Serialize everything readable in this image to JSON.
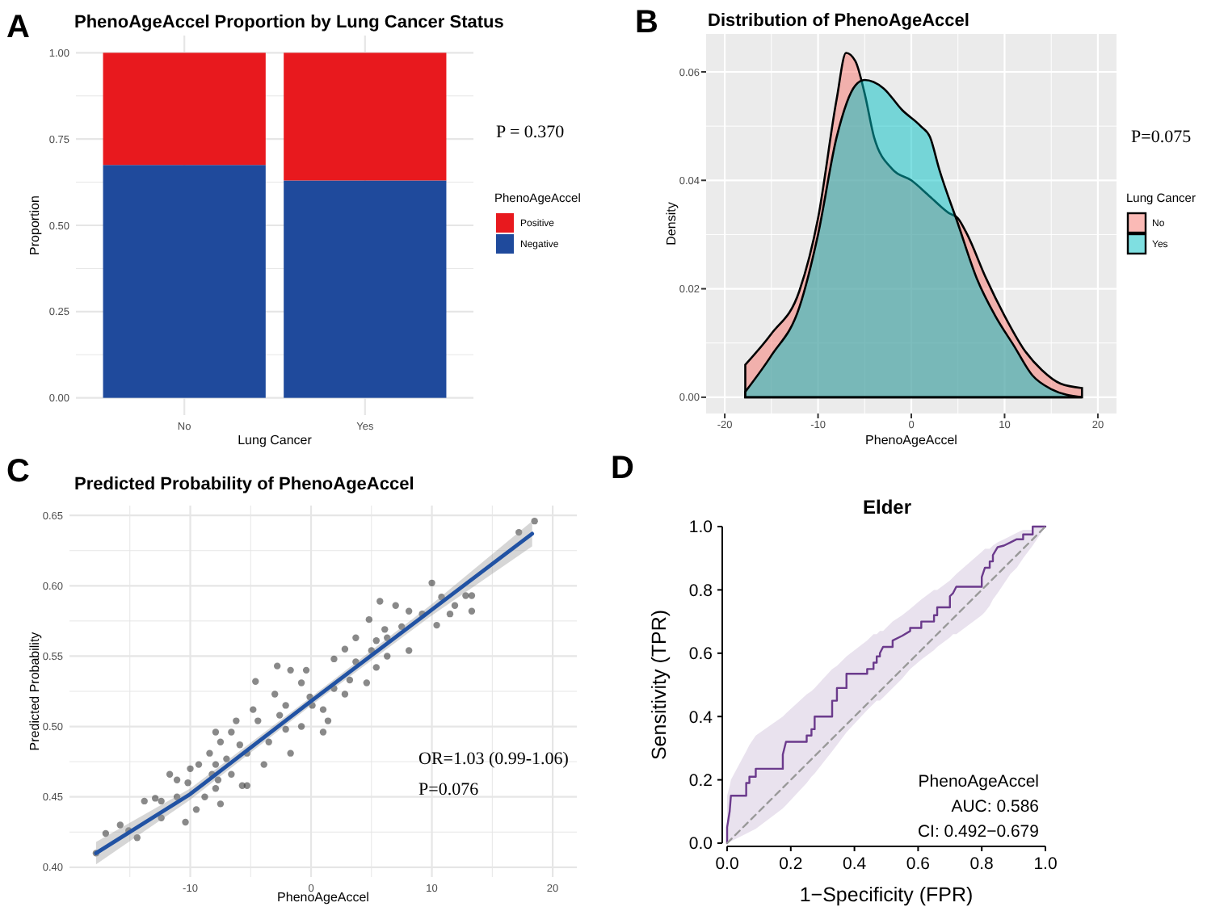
{
  "chart_data": [
    {
      "type": "bar",
      "title": "PhenoAgeAccel Proportion by Lung Cancer Status",
      "xlabel": "Lung Cancer",
      "ylabel": "Proportion",
      "legend_title": "PhenoAgeAccel",
      "annotations": [
        "A",
        "P = 0.370"
      ],
      "categories": [
        "No",
        "Yes"
      ],
      "stacked": true,
      "ylim": [
        -0.05,
        1.05
      ],
      "yticks": [
        {
          "value": 0,
          "label": "0.00"
        },
        {
          "value": 0.25,
          "label": "0.25"
        },
        {
          "value": 0.5,
          "label": "0.50"
        },
        {
          "value": 0.75,
          "label": "0.75"
        },
        {
          "value": 1,
          "label": "1.00"
        }
      ],
      "grid": true,
      "legend": "right",
      "series": [
        {
          "name": "Negative",
          "color": "#1f4a9c",
          "values": [
            0.675,
            0.63
          ]
        },
        {
          "name": "Positive",
          "color": "#e8191e",
          "values": [
            0.325,
            0.37
          ]
        }
      ]
    },
    {
      "type": "area",
      "title": "Distribution of PhenoAgeAccel",
      "xlabel": "PhenoAgeAccel",
      "ylabel": "Density",
      "legend_title": "Lung Cancer",
      "annotations": [
        "B",
        "P=0.075"
      ],
      "xlim": [
        -22,
        22
      ],
      "xticks": [
        -20,
        -10,
        0,
        10,
        20
      ],
      "ylim": [
        -0.003,
        0.067
      ],
      "yticks": [
        {
          "value": 0,
          "label": "0.00"
        },
        {
          "value": 0.02,
          "label": "0.02"
        },
        {
          "value": 0.04,
          "label": "0.04"
        },
        {
          "value": 0.06,
          "label": "0.06"
        }
      ],
      "grid": true,
      "legend": "right",
      "series": [
        {
          "name": "No",
          "color": "#f8766d",
          "x": [
            -17.8,
            -15,
            -12,
            -10,
            -8,
            -7,
            -6,
            -5,
            -4,
            -2,
            0,
            2,
            4,
            5,
            6,
            8,
            10,
            12,
            14,
            16,
            18.3
          ],
          "values": [
            0.006,
            0.0117,
            0.0196,
            0.033,
            0.055,
            0.0635,
            0.062,
            0.056,
            0.048,
            0.042,
            0.04,
            0.037,
            0.034,
            0.033,
            0.03,
            0.022,
            0.015,
            0.009,
            0.005,
            0.0025,
            0.0017
          ]
        },
        {
          "name": "Yes",
          "color": "#00bfc4",
          "x": [
            -17.8,
            -15,
            -12,
            -10,
            -8,
            -6,
            -5,
            -3,
            -1,
            1,
            2,
            3,
            5,
            7,
            9,
            11,
            13,
            15,
            18.3
          ],
          "values": [
            0.001,
            0.0077,
            0.0166,
            0.03,
            0.048,
            0.0575,
            0.0585,
            0.057,
            0.053,
            0.05,
            0.048,
            0.042,
            0.032,
            0.022,
            0.015,
            0.0095,
            0.004,
            0.0015,
            0.0
          ]
        }
      ]
    },
    {
      "type": "scatter",
      "title": "Predicted Probability of PhenoAgeAccel",
      "xlabel": "PhenoAgeAccel",
      "ylabel": "Predicted Probability",
      "annotations": [
        "C",
        "OR=1.03 (0.99-1.06)",
        "P=0.076"
      ],
      "xlim": [
        -20,
        22
      ],
      "xticks": [
        -10,
        0,
        10,
        20
      ],
      "ylim": [
        0.393,
        0.657
      ],
      "yticks": [
        {
          "value": 0.4,
          "label": "0.40"
        },
        {
          "value": 0.45,
          "label": "0.45"
        },
        {
          "value": 0.5,
          "label": "0.50"
        },
        {
          "value": 0.55,
          "label": "0.55"
        },
        {
          "value": 0.6,
          "label": "0.60"
        },
        {
          "value": 0.65,
          "label": "0.65"
        }
      ],
      "grid": true,
      "series": [
        {
          "color": "#3a3a3a",
          "x": [
            18.5,
            17.2,
            10,
            13.3,
            12.8,
            10.8,
            13.3,
            10.4,
            8.1,
            5.7,
            7,
            4.8,
            -2.8,
            -4.6,
            -1.7,
            -0.4,
            1,
            -6.6,
            -7.9,
            -11.7,
            -10.4,
            -13.8,
            -15.8,
            -17,
            -17.8,
            -14.4,
            -12.4,
            -9.5,
            -7.5,
            -5.3,
            -3.9,
            -1.7,
            -0.8,
            1.9,
            3.2,
            5.4,
            6.3,
            3.7,
            1.9,
            2.8,
            -0.1,
            -2.6,
            -4.4,
            -5.9,
            -7,
            -8.2,
            -9.3,
            -10.2,
            -8.8,
            -7.9,
            -11.1,
            -12.9,
            -15.1,
            -5.3,
            -3.5,
            -2.1,
            1,
            1.4,
            2.8,
            4.6,
            5,
            6.1,
            7.5,
            9.2,
            8.1,
            11.5,
            11.9,
            -0.8,
            -3,
            -4.8,
            -6.2,
            -7.5,
            -8.4,
            -10,
            -11.1,
            -12.4,
            -6.6,
            -5.7,
            3.7,
            6.3,
            5.4,
            0.1,
            -2.1,
            -7.9,
            -7.7
          ],
          "values": [
            0.646,
            0.638,
            0.602,
            0.593,
            0.593,
            0.592,
            0.582,
            0.572,
            0.554,
            0.589,
            0.586,
            0.576,
            0.543,
            0.532,
            0.54,
            0.54,
            0.512,
            0.496,
            0.496,
            0.466,
            0.432,
            0.447,
            0.43,
            0.424,
            0.41,
            0.421,
            0.435,
            0.441,
            0.445,
            0.458,
            0.473,
            0.481,
            0.5,
            0.527,
            0.533,
            0.542,
            0.563,
            0.563,
            0.548,
            0.555,
            0.521,
            0.508,
            0.504,
            0.487,
            0.477,
            0.466,
            0.473,
            0.46,
            0.45,
            0.456,
            0.45,
            0.449,
            0.426,
            0.481,
            0.489,
            0.498,
            0.496,
            0.504,
            0.523,
            0.531,
            0.554,
            0.569,
            0.571,
            0.58,
            0.582,
            0.58,
            0.586,
            0.531,
            0.523,
            0.512,
            0.504,
            0.489,
            0.481,
            0.47,
            0.462,
            0.447,
            0.466,
            0.458,
            0.546,
            0.55,
            0.561,
            0.515,
            0.515,
            0.473,
            0.462
          ]
        },
        {
          "type": "line",
          "color": "#2152a3",
          "x": [
            -17.8,
            -10,
            0,
            10,
            18.3
          ],
          "values": [
            0.41,
            0.452,
            0.518,
            0.583,
            0.637
          ],
          "lower": [
            0.402,
            0.448,
            0.515,
            0.579,
            0.628
          ],
          "upper": [
            0.418,
            0.456,
            0.521,
            0.587,
            0.646
          ]
        }
      ]
    },
    {
      "type": "line",
      "title": "Elder",
      "xlabel": "1−Specificity (FPR)",
      "ylabel": "Sensitivity (TPR)",
      "annotations": [
        "D",
        "PhenoAgeAccel",
        "AUC: 0.586",
        "CI: 0.492−0.679"
      ],
      "xlim": [
        0,
        1
      ],
      "xticks": [
        {
          "value": 0,
          "label": "0.0"
        },
        {
          "value": 0.2,
          "label": "0.2"
        },
        {
          "value": 0.4,
          "label": "0.4"
        },
        {
          "value": 0.6,
          "label": "0.6"
        },
        {
          "value": 0.8,
          "label": "0.8"
        },
        {
          "value": 1,
          "label": "1.0"
        }
      ],
      "ylim": [
        0,
        1
      ],
      "yticks": [
        {
          "value": 0,
          "label": "0.0"
        },
        {
          "value": 0.2,
          "label": "0.2"
        },
        {
          "value": 0.4,
          "label": "0.4"
        },
        {
          "value": 0.6,
          "label": "0.6"
        },
        {
          "value": 0.8,
          "label": "0.8"
        },
        {
          "value": 1,
          "label": "1.0"
        }
      ],
      "series": [
        {
          "color": "#6b3a8c",
          "x": [
            0,
            0,
            0.008,
            0.012,
            0.06,
            0.06,
            0.07,
            0.07,
            0.09,
            0.09,
            0.175,
            0.175,
            0.185,
            0.25,
            0.25,
            0.265,
            0.265,
            0.275,
            0.275,
            0.33,
            0.33,
            0.345,
            0.345,
            0.375,
            0.375,
            0.44,
            0.44,
            0.46,
            0.46,
            0.47,
            0.47,
            0.48,
            0.48,
            0.49,
            0.52,
            0.52,
            0.55,
            0.575,
            0.575,
            0.61,
            0.61,
            0.65,
            0.65,
            0.66,
            0.66,
            0.7,
            0.7,
            0.71,
            0.72,
            0.8,
            0.8,
            0.81,
            0.825,
            0.825,
            0.835,
            0.835,
            0.85,
            0.87,
            0.89,
            0.91,
            0.93,
            0.93,
            0.96,
            0.96,
            1
          ],
          "values": [
            0,
            0.05,
            0.1,
            0.15,
            0.15,
            0.19,
            0.19,
            0.21,
            0.21,
            0.235,
            0.235,
            0.28,
            0.32,
            0.32,
            0.34,
            0.34,
            0.36,
            0.36,
            0.4,
            0.4,
            0.45,
            0.45,
            0.49,
            0.49,
            0.535,
            0.535,
            0.55,
            0.55,
            0.57,
            0.57,
            0.59,
            0.59,
            0.6,
            0.62,
            0.62,
            0.64,
            0.655,
            0.67,
            0.68,
            0.68,
            0.7,
            0.7,
            0.72,
            0.72,
            0.745,
            0.745,
            0.78,
            0.79,
            0.81,
            0.81,
            0.84,
            0.87,
            0.87,
            0.89,
            0.89,
            0.91,
            0.935,
            0.94,
            0.95,
            0.96,
            0.96,
            0.975,
            0.975,
            1,
            1
          ],
          "lower": [
            0,
            0,
            0.004,
            0.006,
            0.03,
            0.03,
            0.035,
            0.035,
            0.045,
            0.045,
            0.11,
            0.11,
            0.12,
            0.19,
            0.19,
            0.21,
            0.21,
            0.22,
            0.22,
            0.29,
            0.29,
            0.31,
            0.31,
            0.35,
            0.35,
            0.42,
            0.42,
            0.44,
            0.44,
            0.45,
            0.45,
            0.45,
            0.45,
            0.46,
            0.49,
            0.49,
            0.52,
            0.55,
            0.55,
            0.58,
            0.58,
            0.61,
            0.61,
            0.62,
            0.62,
            0.65,
            0.65,
            0.66,
            0.66,
            0.72,
            0.72,
            0.73,
            0.75,
            0.75,
            0.77,
            0.77,
            0.79,
            0.82,
            0.85,
            0.87,
            0.9,
            0.9,
            0.94,
            0.94,
            1
          ],
          "upper": [
            0.15,
            0.15,
            0.18,
            0.2,
            0.29,
            0.29,
            0.31,
            0.31,
            0.34,
            0.34,
            0.4,
            0.4,
            0.41,
            0.47,
            0.47,
            0.48,
            0.48,
            0.49,
            0.49,
            0.55,
            0.55,
            0.56,
            0.56,
            0.59,
            0.59,
            0.64,
            0.64,
            0.66,
            0.66,
            0.66,
            0.66,
            0.67,
            0.67,
            0.67,
            0.7,
            0.7,
            0.72,
            0.74,
            0.74,
            0.77,
            0.77,
            0.8,
            0.8,
            0.8,
            0.8,
            0.83,
            0.83,
            0.84,
            0.85,
            0.92,
            0.92,
            0.93,
            0.93,
            0.93,
            0.94,
            0.94,
            0.95,
            0.96,
            0.97,
            0.98,
            0.99,
            0.99,
            0.99,
            1,
            1
          ]
        },
        {
          "color": "#999999",
          "line_style": "dashed",
          "x": [
            0,
            1
          ],
          "values": [
            0,
            1
          ]
        }
      ]
    }
  ]
}
